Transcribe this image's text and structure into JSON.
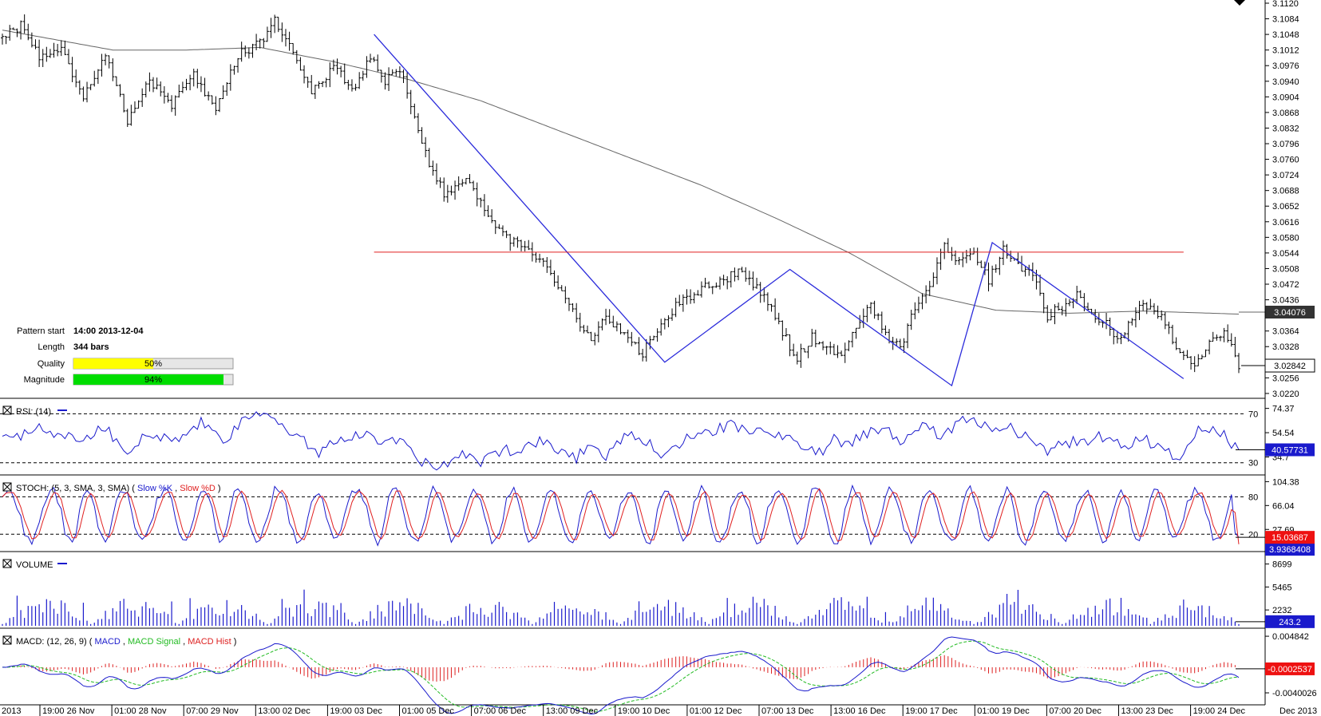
{
  "pattern_info": {
    "start_label": "Pattern start",
    "start_value": "14:00 2013-12-04",
    "length_label": "Length",
    "length_value": "344 bars",
    "quality_label": "Quality",
    "quality_value": "50%",
    "quality_fraction": 0.5,
    "magnitude_label": "Magnitude",
    "magnitude_value": "94%",
    "magnitude_fraction": 0.94
  },
  "colors": {
    "price_bar": "#000000",
    "moving_average": "#666666",
    "pattern_line": "#2b2bdb",
    "level_line": "#e02020",
    "rsi": "#1a1acc",
    "stoch_k": "#1a1acc",
    "stoch_d": "#e02020",
    "volume": "#1a1acc",
    "macd": "#1a1acc",
    "macd_signal": "#22bb22",
    "macd_hist": "#dd2020",
    "badge_dark": "#333333",
    "badge_blue": "#1a1acc",
    "badge_red": "#ee1111",
    "quality_bar": "#ffff00",
    "magnitude_bar": "#00dd00"
  },
  "chart_data": [
    {
      "type": "candlestick",
      "panel": "price",
      "y_ticks": [
        "3.1120",
        "3.1084",
        "3.1048",
        "3.1012",
        "3.0976",
        "3.0940",
        "3.0904",
        "3.0868",
        "3.0832",
        "3.0796",
        "3.0760",
        "3.0724",
        "3.0688",
        "3.0652",
        "3.0616",
        "3.0580",
        "3.0544",
        "3.0508",
        "3.0472",
        "3.0436",
        "3.0400",
        "3.0364",
        "3.0328",
        "3.0292",
        "3.0256",
        "3.0220"
      ],
      "ylim": [
        3.0218,
        3.112
      ],
      "x_labels": [
        "2013",
        "19:00 26 Nov",
        "01:00 28 Nov",
        "07:00 29 Nov",
        "13:00 02 Dec",
        "19:00 03 Dec",
        "01:00 05 Dec",
        "07:00 06 Dec",
        "13:00 09 Dec",
        "19:00 10 Dec",
        "01:00 12 Dec",
        "07:00 13 Dec",
        "13:00 16 Dec",
        "19:00 17 Dec",
        "01:00 19 Dec",
        "07:00 20 Dec",
        "13:00 23 Dec",
        "19:00 24 Dec",
        "Dec 2013"
      ],
      "anchors": [
        [
          0,
          3.104
        ],
        [
          5,
          3.107
        ],
        [
          10,
          3.1
        ],
        [
          16,
          3.101
        ],
        [
          22,
          3.09
        ],
        [
          28,
          3.1
        ],
        [
          34,
          3.085
        ],
        [
          40,
          3.094
        ],
        [
          46,
          3.088
        ],
        [
          52,
          3.096
        ],
        [
          58,
          3.087
        ],
        [
          64,
          3.1
        ],
        [
          70,
          3.103
        ],
        [
          74,
          3.108
        ],
        [
          78,
          3.102
        ],
        [
          84,
          3.092
        ],
        [
          90,
          3.097
        ],
        [
          96,
          3.092
        ],
        [
          100,
          3.1
        ],
        [
          104,
          3.094
        ],
        [
          108,
          3.097
        ],
        [
          112,
          3.085
        ],
        [
          116,
          3.075
        ],
        [
          120,
          3.068
        ],
        [
          126,
          3.071
        ],
        [
          130,
          3.066
        ],
        [
          134,
          3.061
        ],
        [
          138,
          3.057
        ],
        [
          142,
          3.056
        ],
        [
          148,
          3.051
        ],
        [
          152,
          3.045
        ],
        [
          156,
          3.039
        ],
        [
          160,
          3.034
        ],
        [
          164,
          3.04
        ],
        [
          170,
          3.035
        ],
        [
          174,
          3.031
        ],
        [
          178,
          3.037
        ],
        [
          184,
          3.043
        ],
        [
          190,
          3.046
        ],
        [
          196,
          3.048
        ],
        [
          200,
          3.05
        ],
        [
          204,
          3.047
        ],
        [
          208,
          3.043
        ],
        [
          212,
          3.036
        ],
        [
          216,
          3.03
        ],
        [
          220,
          3.035
        ],
        [
          224,
          3.033
        ],
        [
          228,
          3.031
        ],
        [
          232,
          3.038
        ],
        [
          236,
          3.042
        ],
        [
          240,
          3.036
        ],
        [
          244,
          3.032
        ],
        [
          248,
          3.042
        ],
        [
          252,
          3.046
        ],
        [
          256,
          3.056
        ],
        [
          260,
          3.052
        ],
        [
          264,
          3.055
        ],
        [
          268,
          3.048
        ],
        [
          272,
          3.055
        ],
        [
          276,
          3.052
        ],
        [
          280,
          3.049
        ],
        [
          284,
          3.04
        ],
        [
          288,
          3.042
        ],
        [
          292,
          3.045
        ],
        [
          296,
          3.041
        ],
        [
          300,
          3.038
        ],
        [
          304,
          3.034
        ],
        [
          308,
          3.041
        ],
        [
          312,
          3.043
        ],
        [
          316,
          3.038
        ],
        [
          320,
          3.031
        ],
        [
          324,
          3.028
        ],
        [
          328,
          3.034
        ],
        [
          332,
          3.036
        ],
        [
          334,
          3.033
        ],
        [
          336,
          3.028
        ]
      ],
      "ma_anchors": [
        [
          0,
          3.1058
        ],
        [
          30,
          3.1012
        ],
        [
          50,
          3.1012
        ],
        [
          70,
          3.1018
        ],
        [
          90,
          3.0985
        ],
        [
          110,
          3.0945
        ],
        [
          130,
          3.0895
        ],
        [
          150,
          3.083
        ],
        [
          170,
          3.0765
        ],
        [
          190,
          3.07
        ],
        [
          210,
          3.0625
        ],
        [
          230,
          3.0545
        ],
        [
          250,
          3.045
        ],
        [
          270,
          3.0412
        ],
        [
          290,
          3.0405
        ],
        [
          310,
          3.041
        ],
        [
          336,
          3.0403
        ]
      ],
      "ma_current": "3.04076",
      "last_price": "3.02842",
      "pattern_points": [
        [
          101,
          3.1048
        ],
        [
          180,
          3.0292
        ],
        [
          214,
          3.0506
        ],
        [
          258,
          3.0238
        ],
        [
          269,
          3.0568
        ],
        [
          321,
          3.0254
        ]
      ],
      "level": 3.0546,
      "level_range": [
        101,
        321
      ]
    },
    {
      "type": "line",
      "panel": "rsi",
      "title": "RSI: (14)",
      "y_ticks": [
        "74.37",
        "54.54",
        "34.7"
      ],
      "ylim": [
        22,
        80
      ],
      "levels": [
        30,
        70
      ],
      "level_labels": [
        "30",
        "70"
      ],
      "current": "40.57731",
      "anchors": [
        [
          0,
          48
        ],
        [
          10,
          58
        ],
        [
          20,
          50
        ],
        [
          28,
          58
        ],
        [
          34,
          40
        ],
        [
          40,
          55
        ],
        [
          46,
          46
        ],
        [
          54,
          62
        ],
        [
          60,
          48
        ],
        [
          64,
          60
        ],
        [
          70,
          70
        ],
        [
          74,
          66
        ],
        [
          80,
          52
        ],
        [
          86,
          36
        ],
        [
          90,
          50
        ],
        [
          96,
          52
        ],
        [
          100,
          55
        ],
        [
          104,
          44
        ],
        [
          108,
          52
        ],
        [
          112,
          36
        ],
        [
          116,
          27
        ],
        [
          120,
          30
        ],
        [
          126,
          36
        ],
        [
          130,
          30
        ],
        [
          134,
          38
        ],
        [
          140,
          42
        ],
        [
          146,
          48
        ],
        [
          152,
          40
        ],
        [
          156,
          34
        ],
        [
          160,
          48
        ],
        [
          164,
          36
        ],
        [
          170,
          52
        ],
        [
          176,
          44
        ],
        [
          180,
          34
        ],
        [
          186,
          52
        ],
        [
          192,
          56
        ],
        [
          198,
          60
        ],
        [
          204,
          56
        ],
        [
          210,
          52
        ],
        [
          216,
          48
        ],
        [
          222,
          38
        ],
        [
          226,
          50
        ],
        [
          230,
          46
        ],
        [
          236,
          55
        ],
        [
          240,
          60
        ],
        [
          244,
          48
        ],
        [
          248,
          60
        ],
        [
          252,
          56
        ],
        [
          256,
          52
        ],
        [
          260,
          62
        ],
        [
          264,
          66
        ],
        [
          268,
          60
        ],
        [
          274,
          58
        ],
        [
          280,
          50
        ],
        [
          284,
          40
        ],
        [
          288,
          46
        ],
        [
          294,
          48
        ],
        [
          300,
          52
        ],
        [
          304,
          44
        ],
        [
          310,
          50
        ],
        [
          316,
          40
        ],
        [
          320,
          34
        ],
        [
          324,
          54
        ],
        [
          328,
          58
        ],
        [
          332,
          52
        ],
        [
          336,
          40.6
        ]
      ]
    },
    {
      "type": "line",
      "panel": "stoch",
      "title": "STOCH: (5, 3, SMA, 3, SMA)",
      "legend": [
        "Slow %K",
        "Slow %D"
      ],
      "y_ticks": [
        "104.38",
        "66.04",
        "27.69"
      ],
      "ylim": [
        -4,
        110
      ],
      "levels": [
        20,
        80
      ],
      "level_labels": [
        "20",
        "80"
      ],
      "current_k": "15.03687",
      "current_d": "3.9368408"
    },
    {
      "type": "bar",
      "panel": "volume",
      "title": "VOLUME",
      "y_ticks": [
        "8699",
        "5465",
        "2232"
      ],
      "ylim": [
        0,
        10000
      ],
      "current": "243.2"
    },
    {
      "type": "line",
      "panel": "macd",
      "title": "MACD: (12, 26, 9)",
      "legend": [
        "MACD",
        "MACD Signal",
        "MACD Hist"
      ],
      "y_ticks": [
        "0.004842",
        "-0.0040026"
      ],
      "ylim": [
        -0.0055,
        0.0056
      ],
      "current": "-0.0002537"
    }
  ]
}
